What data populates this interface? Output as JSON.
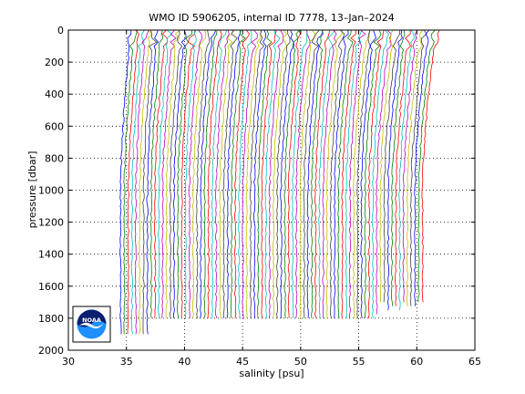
{
  "chart_data": {
    "type": "line",
    "title": "WMO ID 5906205, internal ID 7778, 13–Jan–2024",
    "xlabel": "salinity [psu]",
    "ylabel": "pressure [dbar]",
    "xlim": [
      30,
      65
    ],
    "ylim": [
      0,
      2000
    ],
    "y_reversed": true,
    "grid": true,
    "grid_style": "dotted",
    "x_ticks": [
      30,
      35,
      40,
      45,
      50,
      55,
      60,
      65
    ],
    "y_ticks": [
      0,
      200,
      400,
      600,
      800,
      1000,
      1200,
      1400,
      1600,
      1800,
      2000
    ],
    "series_description": "waterfall of many salinity profiles, each offset successively in salinity",
    "profile_count": 80,
    "first_profile_surface_salinity": 35.4,
    "first_profile_deep_salinity": 34.5,
    "last_profile_surface_salinity": 61.7,
    "last_profile_deep_salinity": 60.5,
    "max_pressure_typical": 1800,
    "colors": [
      "#0000ff",
      "#008000",
      "#ff0000",
      "#00bfbf",
      "#bf00bf",
      "#bfbf00",
      "#404040"
    ]
  },
  "logo": {
    "text": "NOAA",
    "colors": {
      "top": "#0a1f6e",
      "bottom": "#1e90ff",
      "bird": "#ffffff"
    }
  }
}
